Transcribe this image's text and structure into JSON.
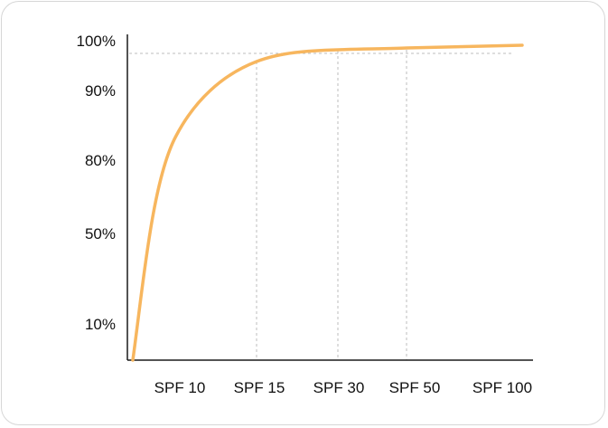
{
  "chart_data": {
    "type": "line",
    "title": "",
    "xlabel": "",
    "ylabel": "",
    "grid": false,
    "legend": "none",
    "color": "#f7b65e",
    "guide_color": "#bdbdbd",
    "y_tick_labels": [
      "100%",
      "90%",
      "80%",
      "50%",
      "10%"
    ],
    "x_tick_labels": [
      "SPF 10",
      "SPF 15",
      "SPF 30",
      "SPF 50",
      "SPF 100"
    ],
    "series": [
      {
        "x": [
          0,
          10,
          15,
          30,
          50,
          100
        ],
        "y": [
          0,
          85,
          93,
          96.5,
          97.5,
          98
        ]
      }
    ],
    "reference_line_y": 97
  }
}
